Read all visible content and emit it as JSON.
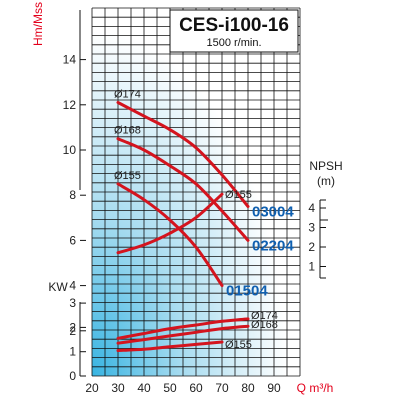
{
  "chart_data": {
    "type": "line",
    "title": "CES-i100-16",
    "subtitle": "1500 r/min.",
    "x_axis": {
      "label": "Q m³/h",
      "range": [
        20,
        100
      ],
      "ticks": [
        "20",
        "30",
        "40",
        "50",
        "60",
        "70",
        "80",
        "90"
      ]
    },
    "head_axis": {
      "label": "Hm/Mss",
      "range": [
        0,
        14
      ],
      "ticks": [
        "2",
        "4",
        "6",
        "8",
        "10",
        "12",
        "14"
      ]
    },
    "npsh_axis": {
      "label": "NPSH",
      "unit": "(m)",
      "ticks": [
        "1",
        "2",
        "3",
        "4"
      ]
    },
    "power_axis": {
      "label": "KW",
      "range": [
        0,
        3
      ],
      "ticks": [
        "0",
        "1",
        "2",
        "3"
      ]
    },
    "head_curves": [
      {
        "diameter": "Ø174",
        "model": "03004",
        "x": [
          30,
          40,
          50,
          60,
          70,
          80
        ],
        "y": [
          12.1,
          11.5,
          10.9,
          10.1,
          8.9,
          7.5
        ]
      },
      {
        "diameter": "Ø168",
        "model": "02204",
        "x": [
          30,
          40,
          50,
          60,
          70,
          80
        ],
        "y": [
          10.5,
          10.0,
          9.3,
          8.5,
          7.3,
          6.0
        ]
      },
      {
        "diameter": "Ø155",
        "model": "01504",
        "x": [
          30,
          40,
          50,
          60,
          70
        ],
        "y": [
          8.5,
          7.8,
          6.9,
          5.7,
          4.0
        ]
      }
    ],
    "npsh_curves": [
      {
        "diameter": "Ø155",
        "x": [
          30,
          40,
          50,
          60,
          70
        ],
        "y": [
          1.4,
          1.8,
          2.4,
          3.2,
          4.4
        ]
      }
    ],
    "power_curves": [
      {
        "diameter": "Ø174",
        "x": [
          30,
          40,
          50,
          60,
          70,
          80
        ],
        "y": [
          1.55,
          1.75,
          1.95,
          2.1,
          2.25,
          2.35
        ]
      },
      {
        "diameter": "Ø168",
        "x": [
          30,
          40,
          50,
          60,
          70,
          80
        ],
        "y": [
          1.35,
          1.5,
          1.65,
          1.8,
          1.95,
          2.05
        ]
      },
      {
        "diameter": "Ø155",
        "x": [
          30,
          40,
          50,
          60,
          70
        ],
        "y": [
          1.05,
          1.1,
          1.2,
          1.3,
          1.4
        ]
      }
    ],
    "grid": true,
    "line_color": "#d4141e",
    "background_gradient": [
      "#ffffff",
      "#38b4e2"
    ]
  }
}
